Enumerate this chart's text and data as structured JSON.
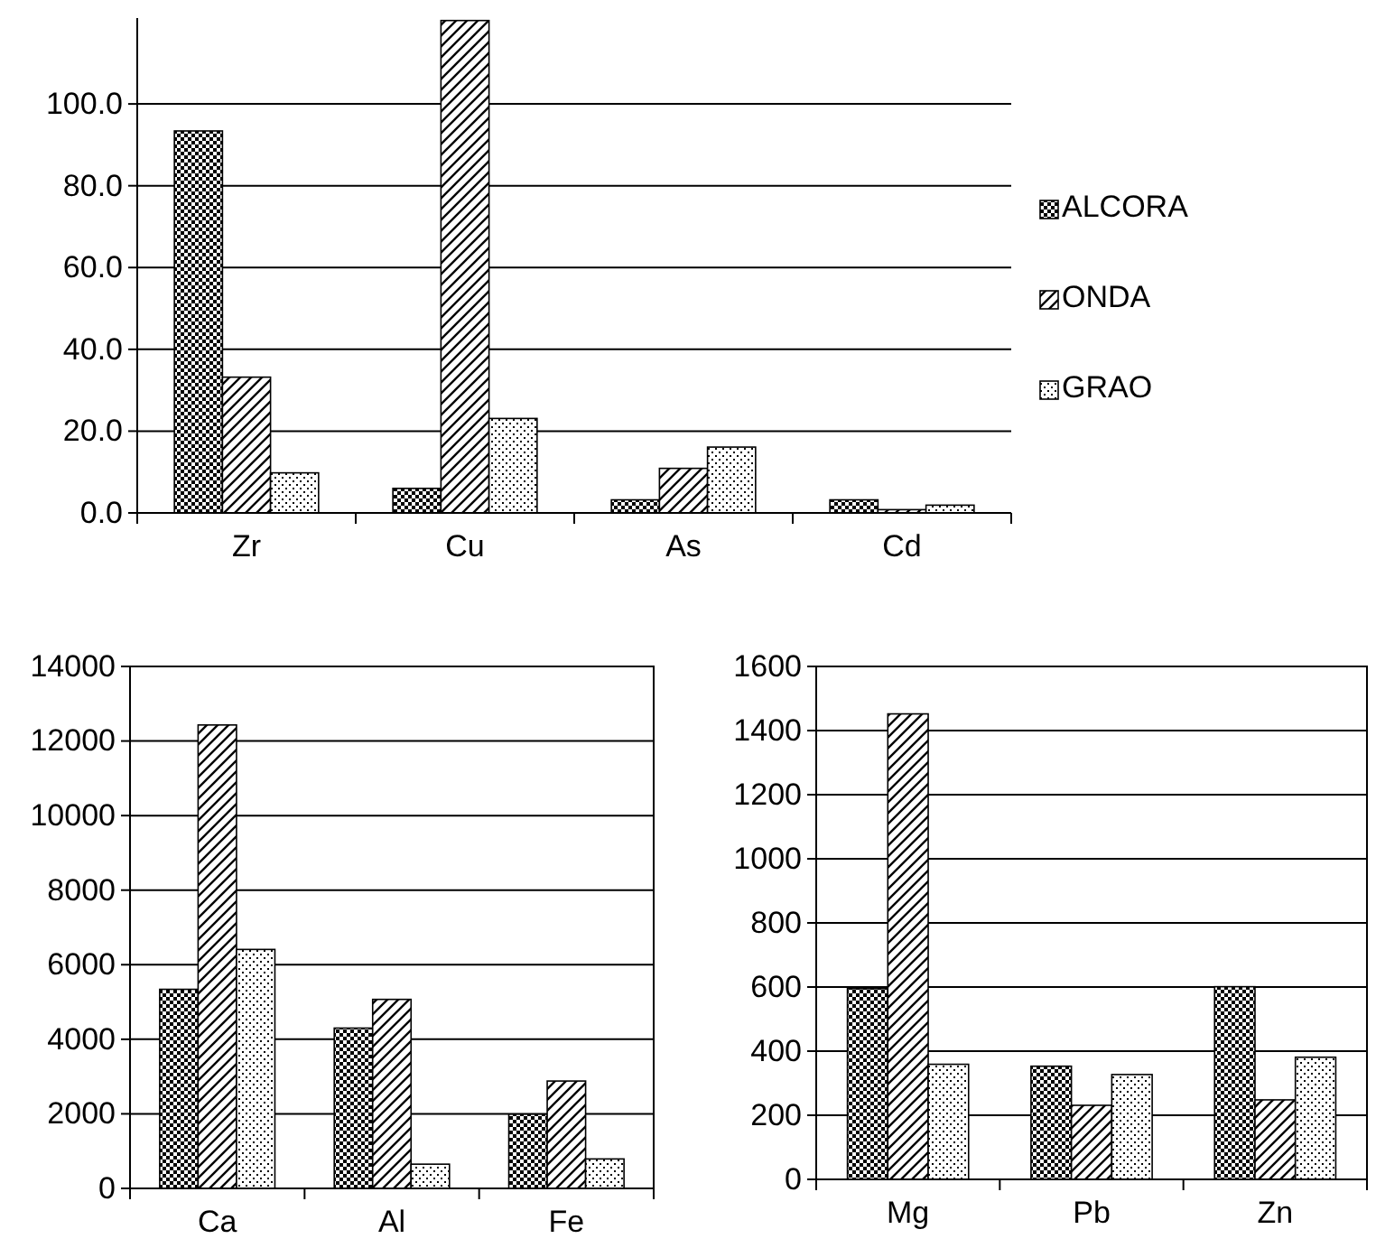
{
  "chart_data": [
    {
      "type": "bar",
      "categories": [
        "Zr",
        "Cu",
        "As",
        "Cd"
      ],
      "series": [
        {
          "name": "ALCORA",
          "color": "#000000",
          "values": [
            93.4,
            6.0,
            3.2,
            3.2
          ]
        },
        {
          "name": "ONDA",
          "color": "#000000",
          "values": [
            33.2,
            120.4,
            10.9,
            0.8
          ]
        },
        {
          "name": "GRAO",
          "color": "#000000",
          "values": [
            9.8,
            23.1,
            16.1,
            1.9
          ]
        }
      ],
      "ylim": [
        0,
        121
      ],
      "yticks": [
        {
          "value": 0,
          "label": "0.0"
        },
        {
          "value": 20,
          "label": "20.0"
        },
        {
          "value": 40,
          "label": "40.0"
        },
        {
          "value": 60,
          "label": "60.0"
        },
        {
          "value": 80,
          "label": "80.0"
        },
        {
          "value": 100,
          "label": "100.0"
        }
      ],
      "grid": "y",
      "legend": "right"
    },
    {
      "type": "bar",
      "categories": [
        "Ca",
        "Al",
        "Fe"
      ],
      "series": [
        {
          "name": "ALCORA",
          "color": "#000000",
          "values": [
            5340,
            4300,
            1990
          ]
        },
        {
          "name": "ONDA",
          "color": "#000000",
          "values": [
            12430,
            5070,
            2880
          ]
        },
        {
          "name": "GRAO",
          "color": "#000000",
          "values": [
            6410,
            650,
            790
          ]
        }
      ],
      "ylim": [
        0,
        14000
      ],
      "yticks": [
        0,
        2000,
        4000,
        6000,
        8000,
        10000,
        12000,
        14000
      ],
      "grid": "y"
    },
    {
      "type": "bar",
      "categories": [
        "Mg",
        "Pb",
        "Zn"
      ],
      "series": [
        {
          "name": "ALCORA",
          "color": "#000000",
          "values": [
            595,
            353,
            601
          ]
        },
        {
          "name": "ONDA",
          "color": "#000000",
          "values": [
            1452,
            231,
            248
          ]
        },
        {
          "name": "GRAO",
          "color": "#000000",
          "values": [
            359,
            327,
            381
          ]
        }
      ],
      "ylim": [
        0,
        1600
      ],
      "yticks": [
        0,
        200,
        400,
        600,
        800,
        1000,
        1200,
        1400,
        1600
      ],
      "grid": "y"
    }
  ]
}
